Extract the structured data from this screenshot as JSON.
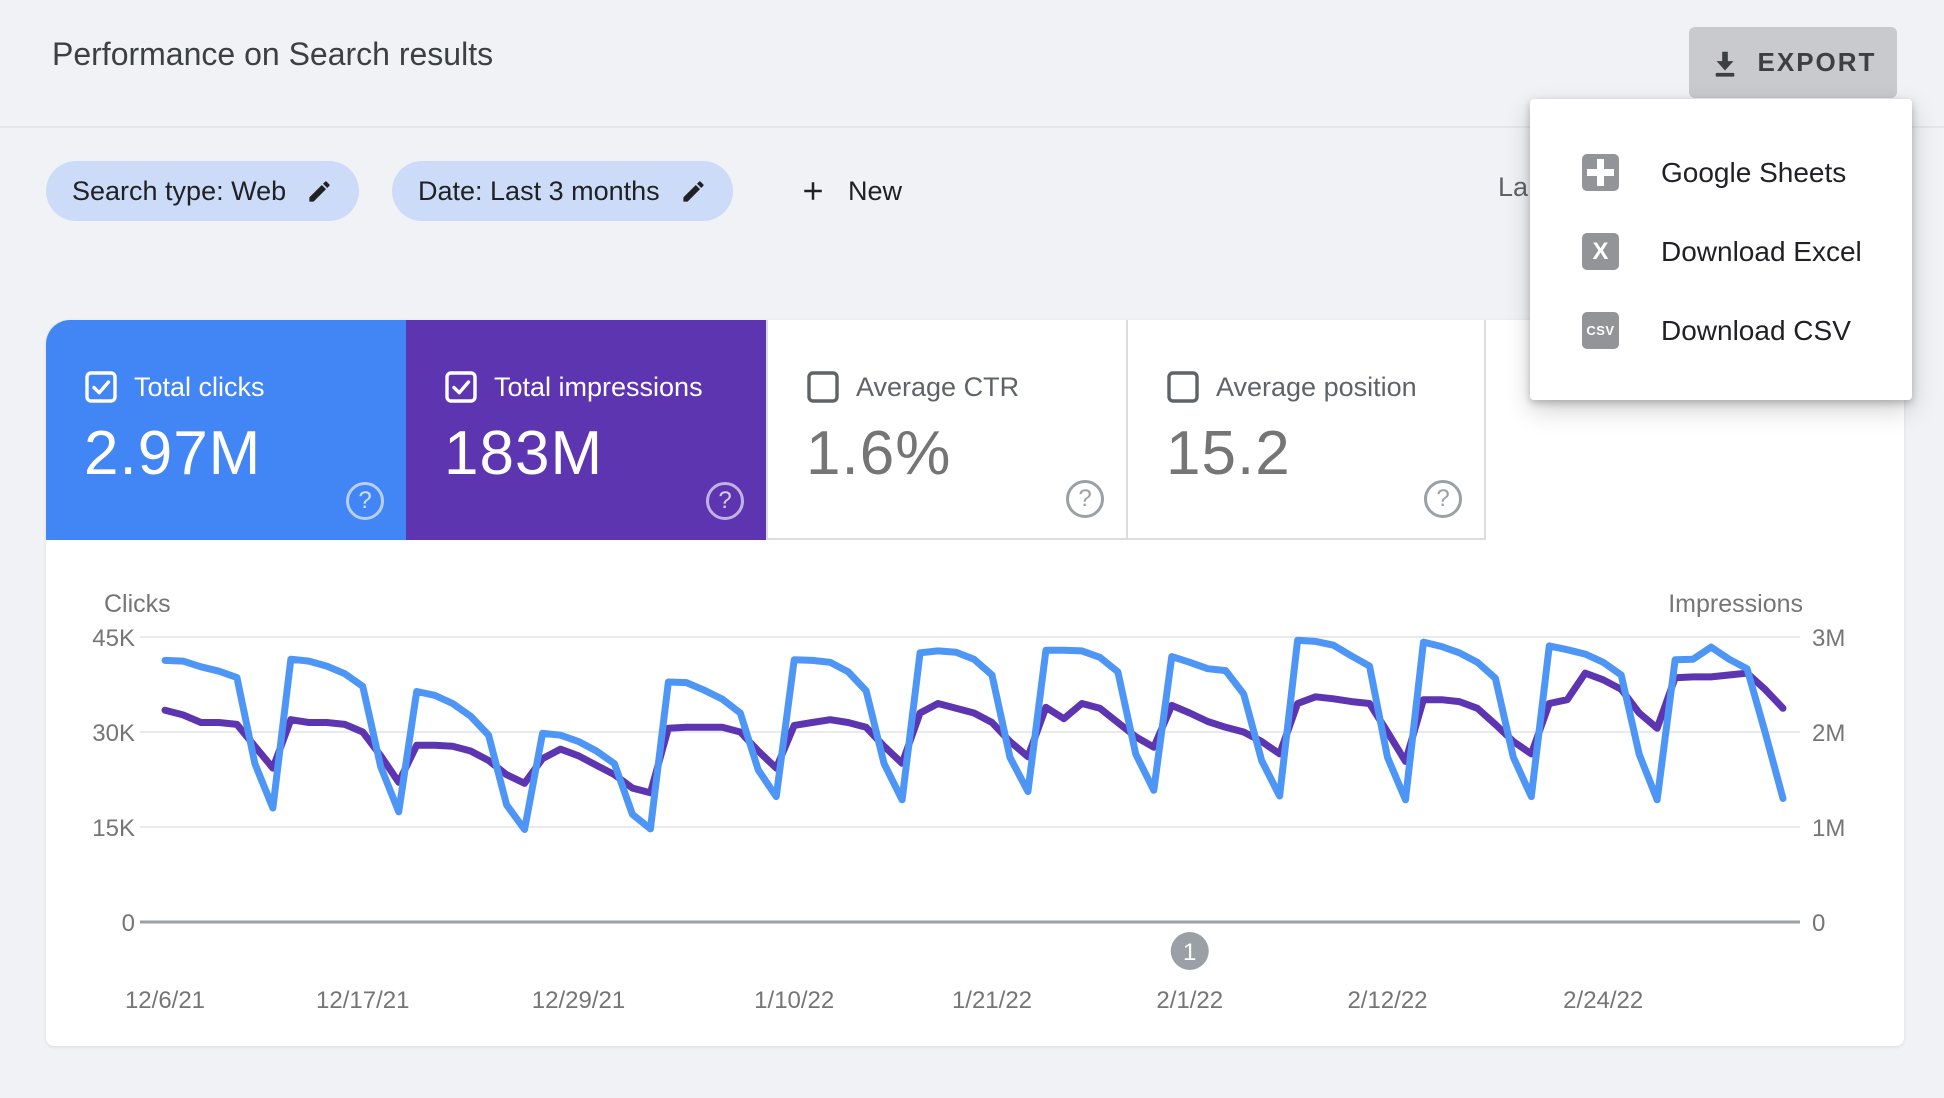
{
  "header": {
    "title": "Performance on Search results",
    "export_label": "EXPORT"
  },
  "export_menu": {
    "items": [
      {
        "label": "Google Sheets",
        "icon": "sheets-icon"
      },
      {
        "label": "Download Excel",
        "icon": "excel-icon"
      },
      {
        "label": "Download CSV",
        "icon": "csv-icon"
      }
    ]
  },
  "filters": {
    "search_type_chip": "Search type: Web",
    "date_chip": "Date: Last 3 months",
    "new_button": "New",
    "truncated_updated_text": "La"
  },
  "cards": [
    {
      "label": "Total clicks",
      "value": "2.97M",
      "checked": true,
      "color": "#4285f4"
    },
    {
      "label": "Total impressions",
      "value": "183M",
      "checked": true,
      "color": "#5e35b1"
    },
    {
      "label": "Average CTR",
      "value": "1.6%",
      "checked": false,
      "color": ""
    },
    {
      "label": "Average position",
      "value": "15.2",
      "checked": false,
      "color": ""
    }
  ],
  "colors": {
    "page_background": "#f0f2f6",
    "panel": "#ffffff",
    "chip_background": "#ccdcf8",
    "clicks_blue": "#4e96f5",
    "impressions_purple": "#5e35b1",
    "gridline": "#e8eaed",
    "axis_line": "#9aa0a6",
    "axis_text": "#757575",
    "export_button_background": "#c8cacd"
  },
  "chart_data": {
    "type": "line",
    "title": "",
    "grid": true,
    "left_axis": {
      "label": "Clicks",
      "ticks": [
        "45K",
        "30K",
        "15K",
        "0"
      ],
      "max": 45000,
      "ylim": [
        0,
        45000
      ]
    },
    "right_axis": {
      "label": "Impressions",
      "ticks": [
        "3M",
        "2M",
        "1M",
        "0"
      ],
      "max": 3000000,
      "ylim": [
        0,
        3000000
      ]
    },
    "x_labels": [
      {
        "label": "12/6/21",
        "day": 0
      },
      {
        "label": "12/17/21",
        "day": 11
      },
      {
        "label": "12/29/21",
        "day": 23
      },
      {
        "label": "1/10/22",
        "day": 35
      },
      {
        "label": "1/21/22",
        "day": 46
      },
      {
        "label": "2/1/22",
        "day": 57
      },
      {
        "label": "2/12/22",
        "day": 68
      },
      {
        "label": "2/24/22",
        "day": 80
      }
    ],
    "pagination_marker": {
      "label": "1",
      "day": 57
    },
    "series": [
      {
        "name": "Clicks",
        "axis": "left",
        "color": "#4e96f5",
        "values": [
          41300,
          41200,
          40300,
          39600,
          38600,
          25000,
          18000,
          41500,
          41200,
          40400,
          39200,
          37200,
          24500,
          17400,
          36400,
          35800,
          34500,
          32500,
          29500,
          18500,
          14600,
          29800,
          29500,
          28500,
          27000,
          25000,
          17000,
          14700,
          37900,
          37800,
          36600,
          35200,
          33000,
          24000,
          19800,
          41400,
          41300,
          41000,
          39500,
          36500,
          25000,
          19300,
          42500,
          42800,
          42600,
          41500,
          39000,
          26000,
          20600,
          42900,
          42900,
          42800,
          41800,
          39500,
          26500,
          20800,
          41900,
          41000,
          40000,
          39700,
          36000,
          25500,
          19900,
          44500,
          44300,
          43700,
          42000,
          40400,
          26000,
          19300,
          44200,
          43500,
          42500,
          41000,
          38500,
          26000,
          19800,
          43600,
          43000,
          42300,
          41000,
          39000,
          26500,
          19300,
          41400,
          41500,
          43400,
          41500,
          40000,
          30000,
          19500
        ]
      },
      {
        "name": "Impressions",
        "axis": "right",
        "color": "#5e35b1",
        "values": [
          2230000,
          2180000,
          2100000,
          2100000,
          2080000,
          1850000,
          1620000,
          2130000,
          2100000,
          2100000,
          2080000,
          2000000,
          1750000,
          1470000,
          1860000,
          1860000,
          1850000,
          1800000,
          1700000,
          1550000,
          1460000,
          1720000,
          1820000,
          1750000,
          1650000,
          1550000,
          1410000,
          1360000,
          2040000,
          2050000,
          2050000,
          2050000,
          2000000,
          1800000,
          1620000,
          2070000,
          2100000,
          2130000,
          2100000,
          2050000,
          1850000,
          1670000,
          2200000,
          2300000,
          2250000,
          2200000,
          2100000,
          1900000,
          1740000,
          2260000,
          2140000,
          2300000,
          2250000,
          2100000,
          1950000,
          1840000,
          2280000,
          2200000,
          2110000,
          2050000,
          2000000,
          1900000,
          1770000,
          2300000,
          2370000,
          2350000,
          2320000,
          2300000,
          2000000,
          1690000,
          2340000,
          2340000,
          2320000,
          2250000,
          2080000,
          1900000,
          1770000,
          2300000,
          2340000,
          2620000,
          2550000,
          2450000,
          2200000,
          2040000,
          2570000,
          2580000,
          2580000,
          2600000,
          2620000,
          2450000,
          2250000
        ]
      }
    ]
  }
}
